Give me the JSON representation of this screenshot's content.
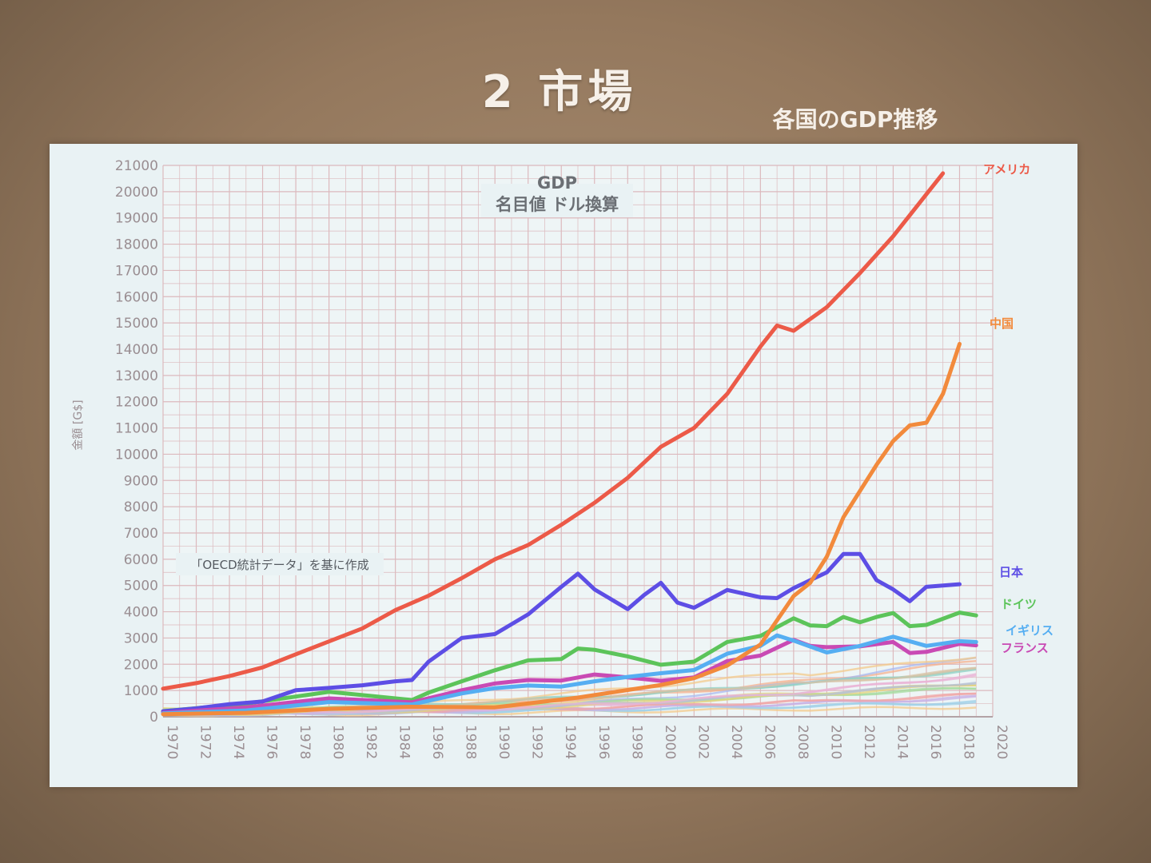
{
  "slide": {
    "title": "2 市場",
    "subtitle": "各国のGDP推移"
  },
  "chart_data": {
    "type": "line",
    "title": "GDP",
    "subtitle": "名目値 ドル換算",
    "ylabel": "金額 [G$]",
    "xlabel": "",
    "ylim": [
      0,
      21000
    ],
    "xlim": [
      1970,
      2020
    ],
    "grid": true,
    "note": "「OECD統計データ」を基に作成",
    "x_ticks": [
      "1970",
      "1972",
      "1974",
      "1976",
      "1978",
      "1980",
      "1982",
      "1984",
      "1986",
      "1988",
      "1990",
      "1992",
      "1994",
      "1996",
      "1998",
      "2000",
      "2002",
      "2004",
      "2006",
      "2008",
      "2010",
      "2012",
      "2014",
      "2016",
      "2018",
      "2020"
    ],
    "y_ticks": [
      "0",
      "1000",
      "2000",
      "3000",
      "4000",
      "5000",
      "6000",
      "7000",
      "8000",
      "9000",
      "10000",
      "11000",
      "12000",
      "13000",
      "14000",
      "15000",
      "16000",
      "17000",
      "18000",
      "19000",
      "20000",
      "21000"
    ],
    "series": [
      {
        "name": "アメリカ",
        "color": "#ec5a48",
        "x": [
          1970,
          1972,
          1974,
          1976,
          1978,
          1980,
          1982,
          1984,
          1986,
          1988,
          1990,
          1992,
          1994,
          1996,
          1998,
          2000,
          2002,
          2004,
          2006,
          2007,
          2008,
          2010,
          2012,
          2014,
          2016,
          2017
        ],
        "y": [
          1070,
          1280,
          1550,
          1880,
          2380,
          2870,
          3360,
          4060,
          4610,
          5280,
          6000,
          6540,
          7310,
          8150,
          9100,
          10280,
          11000,
          12300,
          14100,
          14900,
          14700,
          15600,
          16900,
          18300,
          19900,
          20700
        ]
      },
      {
        "name": "中国",
        "color": "#f28a3c",
        "x": [
          1970,
          1975,
          1980,
          1985,
          1990,
          1995,
          2000,
          2002,
          2004,
          2006,
          2008,
          2009,
          2010,
          2011,
          2012,
          2013,
          2014,
          2015,
          2016,
          2017,
          2018
        ],
        "y": [
          100,
          150,
          300,
          380,
          360,
          730,
          1210,
          1470,
          1950,
          2750,
          4600,
          5100,
          6100,
          7600,
          8600,
          9600,
          10500,
          11100,
          11200,
          12300,
          14200
        ]
      },
      {
        "name": "日本",
        "color": "#5d4ee5",
        "x": [
          1970,
          1972,
          1974,
          1976,
          1978,
          1980,
          1982,
          1984,
          1985,
          1986,
          1988,
          1990,
          1992,
          1994,
          1995,
          1996,
          1998,
          1999,
          2000,
          2001,
          2002,
          2004,
          2006,
          2007,
          2008,
          2010,
          2011,
          2012,
          2013,
          2014,
          2015,
          2016,
          2018
        ],
        "y": [
          210,
          320,
          480,
          580,
          1010,
          1100,
          1200,
          1350,
          1400,
          2100,
          3000,
          3150,
          3900,
          4950,
          5450,
          4850,
          4100,
          4640,
          5100,
          4350,
          4150,
          4830,
          4550,
          4520,
          4900,
          5500,
          6200,
          6200,
          5200,
          4850,
          4400,
          4950,
          5050
        ]
      },
      {
        "name": "ドイツ",
        "color": "#5cc45a",
        "x": [
          1970,
          1975,
          1980,
          1985,
          1986,
          1988,
          1990,
          1992,
          1994,
          1995,
          1996,
          1998,
          2000,
          2002,
          2004,
          2006,
          2008,
          2009,
          2010,
          2011,
          2012,
          2013,
          2014,
          2015,
          2016,
          2018,
          2019
        ],
        "y": [
          210,
          500,
          950,
          640,
          920,
          1350,
          1770,
          2150,
          2200,
          2600,
          2550,
          2300,
          1980,
          2100,
          2850,
          3080,
          3750,
          3480,
          3450,
          3800,
          3600,
          3800,
          3950,
          3450,
          3500,
          3970,
          3860
        ]
      },
      {
        "name": "イギリス",
        "color": "#55aef2",
        "x": [
          1970,
          1975,
          1980,
          1985,
          1988,
          1990,
          1992,
          1994,
          1996,
          1998,
          2000,
          2002,
          2004,
          2006,
          2007,
          2008,
          2010,
          2012,
          2014,
          2016,
          2018,
          2019
        ],
        "y": [
          130,
          240,
          560,
          470,
          890,
          1090,
          1190,
          1150,
          1350,
          1520,
          1660,
          1780,
          2400,
          2700,
          3100,
          2900,
          2450,
          2700,
          3050,
          2700,
          2880,
          2850
        ]
      },
      {
        "name": "フランス",
        "color": "#c94ab4",
        "x": [
          1970,
          1975,
          1980,
          1985,
          1988,
          1990,
          1992,
          1994,
          1996,
          1998,
          2000,
          2002,
          2004,
          2006,
          2008,
          2009,
          2010,
          2012,
          2014,
          2015,
          2016,
          2018,
          2019
        ],
        "y": [
          150,
          360,
          700,
          550,
          1010,
          1270,
          1400,
          1380,
          1610,
          1500,
          1370,
          1500,
          2120,
          2330,
          2930,
          2700,
          2650,
          2680,
          2850,
          2430,
          2470,
          2780,
          2720
        ]
      }
    ]
  }
}
